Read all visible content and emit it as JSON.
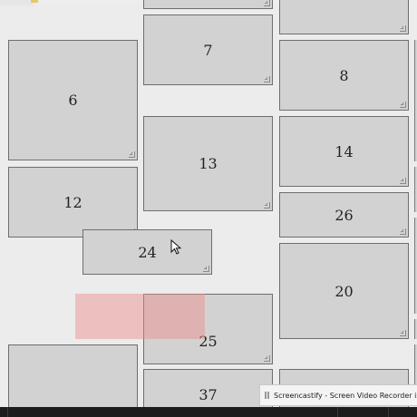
{
  "tiles": [
    {
      "id": "6",
      "label": "6"
    },
    {
      "id": "7",
      "label": "7"
    },
    {
      "id": "8",
      "label": "8"
    },
    {
      "id": "12",
      "label": "12"
    },
    {
      "id": "13",
      "label": "13"
    },
    {
      "id": "14",
      "label": "14"
    },
    {
      "id": "26",
      "label": "26"
    },
    {
      "id": "24",
      "label": "24"
    },
    {
      "id": "20",
      "label": "20"
    },
    {
      "id": "25",
      "label": "25"
    },
    {
      "id": "37",
      "label": "37"
    }
  ],
  "notification": {
    "text": "Screencastify - Screen Video Recorder is sh"
  },
  "colors": {
    "tile_fill": "#d2d2d2",
    "tile_border": "#6e6e6e",
    "background": "#ececec",
    "drop_placeholder": "#f08c8c",
    "taskbar": "#1c1c1c"
  }
}
